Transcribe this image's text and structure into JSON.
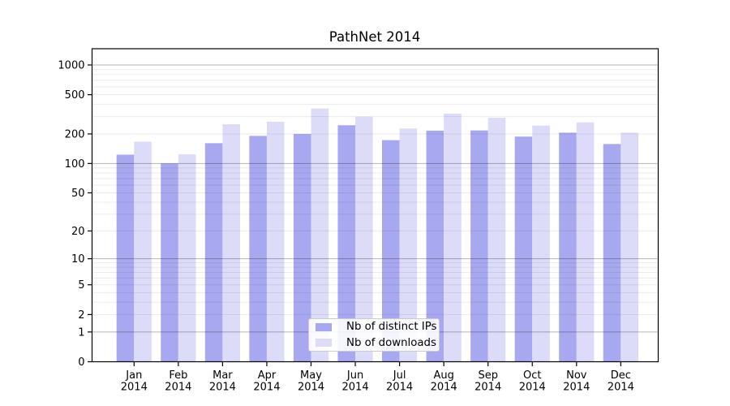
{
  "chart_data": {
    "type": "bar",
    "title": "PathNet 2014",
    "categories": [
      "Jan",
      "Feb",
      "Mar",
      "Apr",
      "May",
      "Jun",
      "Jul",
      "Aug",
      "Sep",
      "Oct",
      "Nov",
      "Dec"
    ],
    "year_label": "2014",
    "series": [
      {
        "name": "Nb of distinct IPs",
        "color": "#a8a8f0",
        "values": [
          123,
          100,
          161,
          191,
          200,
          245,
          173,
          216,
          217,
          188,
          206,
          158
        ]
      },
      {
        "name": "Nb of downloads",
        "color": "#dcdcf9",
        "values": [
          167,
          124,
          251,
          266,
          362,
          299,
          227,
          321,
          292,
          243,
          262,
          206
        ]
      }
    ],
    "xlabel": "",
    "ylabel": "",
    "yscale": "symlog",
    "yticks": [
      0,
      1,
      2,
      5,
      10,
      20,
      50,
      100,
      200,
      500,
      1000
    ],
    "ytick_labels": [
      "0",
      "1",
      "2",
      "5",
      "10",
      "20",
      "50",
      "100",
      "200",
      "500",
      "1000"
    ],
    "ylim": [
      0,
      1460
    ],
    "grid": {
      "on": true,
      "major_lines": [
        1,
        10,
        100,
        1000
      ],
      "minor_multipliers": [
        2,
        3,
        4,
        5,
        6,
        7,
        8,
        9
      ],
      "minor_decades": [
        1,
        10,
        100
      ]
    },
    "legend_position": "lower center"
  },
  "colors": {
    "background": "#ffffff",
    "spine": "#000000",
    "major_grid": "rgba(0,0,0,0.29)",
    "minor_grid": "rgba(0,0,0,0.08)",
    "tick_text": "#000000",
    "legend_border": "#cccccc"
  }
}
